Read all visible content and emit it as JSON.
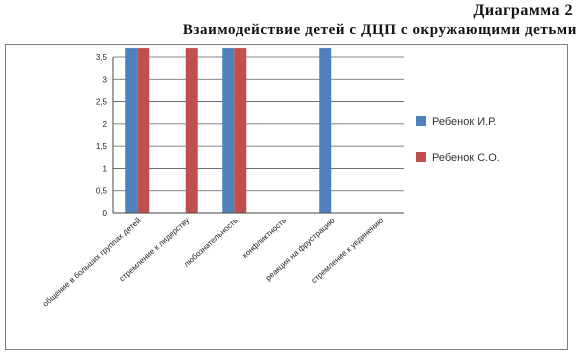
{
  "caption": "Диаграмма 2",
  "title": "Взаимодействие детей с ДЦП с окружающими детьми",
  "chart_data": {
    "type": "bar",
    "categories": [
      "общение в больших группах детей",
      "стремление к лидерству",
      "любознательность",
      "конфликтность",
      "реакция на фрустрацию",
      "стремление к уединению"
    ],
    "series": [
      {
        "name": "Ребенок И.Р.",
        "color": "#4f81bd",
        "values": [
          3.7,
          0,
          3.7,
          0,
          3.7,
          0
        ]
      },
      {
        "name": "Ребенок С.О.",
        "color": "#c0504d",
        "values": [
          3.7,
          3.7,
          3.7,
          0,
          0,
          0
        ]
      }
    ],
    "ylim": [
      0,
      3.5
    ],
    "yticks": [
      "0",
      "0,5",
      "1",
      "1,5",
      "2",
      "2,5",
      "3",
      "3,5"
    ],
    "grid": true,
    "legend": "right"
  }
}
